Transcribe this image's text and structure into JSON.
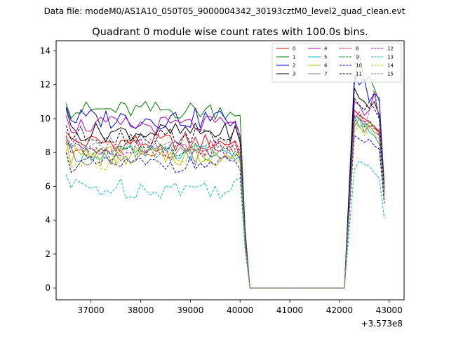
{
  "chart_data": {
    "type": "line",
    "suptitle": "Data file: modeM0/AS1A10_050T05_9000004342_30193cztM0_level2_quad_clean.evt",
    "title": "Quadrant 0 module wise count rates with 100.0s bins.",
    "xlabel": "",
    "ylabel": "",
    "offset_label": "+3.573e8",
    "xlim": [
      36300,
      43300
    ],
    "ylim": [
      -0.7,
      14.6
    ],
    "x_ticks": [
      37000,
      38000,
      39000,
      40000,
      41000,
      42000,
      43000
    ],
    "x_tick_labels": [
      "37000",
      "38000",
      "39000",
      "40000",
      "41000",
      "42000",
      "43000"
    ],
    "y_ticks": [
      0,
      2,
      4,
      6,
      8,
      10,
      12,
      14
    ],
    "y_tick_labels": [
      "0",
      "2",
      "4",
      "6",
      "8",
      "10",
      "12",
      "14"
    ],
    "x_start": 36500,
    "x_step": 100,
    "gap": [
      40200,
      42100
    ],
    "gap_value": 0,
    "series": [
      {
        "name": "0",
        "color": "#ff0000",
        "dash": false,
        "level": 8.6,
        "amp": 0.35,
        "fall": 7.6,
        "start": 9.2,
        "burst": [
          10.5,
          10.2,
          10.0,
          9.8,
          9.5,
          9.3,
          5.8
        ]
      },
      {
        "name": "1",
        "color": "#008000",
        "dash": false,
        "level": 10.5,
        "amp": 0.35,
        "fall": 10.2,
        "start": 10.9,
        "burst": [
          12.0,
          13.8,
          12.2,
          12.5,
          11.8,
          11.0,
          6.2
        ]
      },
      {
        "name": "2",
        "color": "#0000ff",
        "dash": false,
        "level": 10.0,
        "amp": 0.4,
        "fall": 9.0,
        "start": 10.7,
        "burst": [
          12.5,
          12.0,
          12.3,
          11.0,
          11.5,
          11.2,
          5.8
        ]
      },
      {
        "name": "3",
        "color": "#000000",
        "dash": false,
        "level": 9.2,
        "amp": 0.35,
        "fall": 8.6,
        "start": 10.6,
        "burst": [
          11.8,
          11.2,
          11.0,
          10.6,
          11.0,
          10.2,
          5.6
        ]
      },
      {
        "name": "4",
        "color": "#bf00bf",
        "dash": false,
        "level": 9.6,
        "amp": 0.35,
        "fall": 9.0,
        "start": 10.2,
        "burst": [
          11.0,
          10.8,
          10.2,
          10.5,
          11.5,
          10.0,
          5.9
        ]
      },
      {
        "name": "5",
        "color": "#00bfbf",
        "dash": false,
        "level": 8.0,
        "amp": 0.35,
        "fall": 7.8,
        "start": 8.8,
        "burst": [
          10.2,
          9.5,
          9.7,
          9.2,
          9.0,
          8.5,
          5.2
        ]
      },
      {
        "name": "6",
        "color": "#bfbf00",
        "dash": false,
        "level": 7.8,
        "amp": 0.4,
        "fall": 8.0,
        "start": 8.7,
        "burst": [
          9.8,
          9.5,
          9.2,
          9.8,
          9.5,
          9.0,
          5.5
        ]
      },
      {
        "name": "7",
        "color": "#808080",
        "dash": false,
        "level": 7.8,
        "amp": 0.35,
        "fall": 7.5,
        "start": 8.5,
        "burst": [
          9.5,
          10.0,
          9.2,
          9.6,
          9.2,
          9.0,
          5.4
        ]
      },
      {
        "name": "8",
        "color": "#ff0000",
        "dash": true,
        "level": 8.2,
        "amp": 0.35,
        "fall": 8.0,
        "start": 9.0,
        "burst": [
          10.2,
          10.0,
          9.8,
          9.5,
          9.6,
          9.0,
          5.5
        ]
      },
      {
        "name": "9",
        "color": "#008000",
        "dash": true,
        "level": 8.0,
        "amp": 0.35,
        "fall": 8.2,
        "start": 8.6,
        "burst": [
          9.8,
          10.2,
          9.5,
          9.8,
          9.4,
          9.2,
          5.3
        ]
      },
      {
        "name": "10",
        "color": "#0000ff",
        "dash": true,
        "level": 7.3,
        "amp": 0.3,
        "fall": 7.0,
        "start": 8.0,
        "burst": [
          9.0,
          8.8,
          8.6,
          8.8,
          8.4,
          8.2,
          5.0
        ]
      },
      {
        "name": "11",
        "color": "#000000",
        "dash": true,
        "level": 9.0,
        "amp": 0.35,
        "fall": 8.8,
        "start": 9.6,
        "burst": [
          11.2,
          10.8,
          10.5,
          11.0,
          10.6,
          10.0,
          5.8
        ]
      },
      {
        "name": "12",
        "color": "#bf00bf",
        "dash": true,
        "level": 8.3,
        "amp": 0.35,
        "fall": 8.2,
        "start": 8.9,
        "burst": [
          10.0,
          10.4,
          9.8,
          9.9,
          9.5,
          9.2,
          5.6
        ]
      },
      {
        "name": "13",
        "color": "#00bfbf",
        "dash": true,
        "level": 5.9,
        "amp": 0.4,
        "fall": 6.5,
        "start": 6.7,
        "burst": [
          7.0,
          7.5,
          7.3,
          7.2,
          6.8,
          6.5,
          4.1
        ]
      },
      {
        "name": "14",
        "color": "#bfbf00",
        "dash": true,
        "level": 7.6,
        "amp": 0.4,
        "fall": 7.4,
        "start": 8.2,
        "burst": [
          9.2,
          9.6,
          9.0,
          9.4,
          9.0,
          8.8,
          5.3
        ]
      },
      {
        "name": "15",
        "color": "#808080",
        "dash": true,
        "level": 8.4,
        "amp": 0.35,
        "fall": 8.3,
        "start": 8.9,
        "burst": [
          10.2,
          10.0,
          9.6,
          10.4,
          11.8,
          10.0,
          5.6
        ]
      }
    ]
  }
}
